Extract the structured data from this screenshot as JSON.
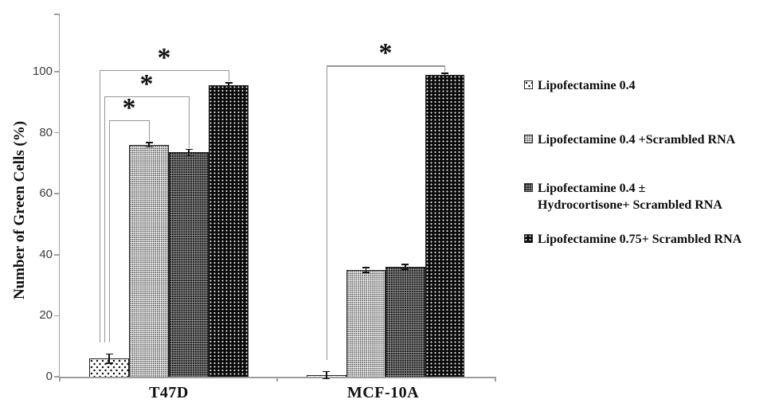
{
  "figure": {
    "background": "#ffffff"
  },
  "colors": {
    "axis": "#9e9e9e",
    "bracket": "#969696",
    "error_bar": "#111111",
    "text": "#111111"
  },
  "significance_marker": "*",
  "y_axis": {
    "label": "Number of Green Cells (%)"
  },
  "legend": {
    "items": [
      {
        "label": "Lipofectamine 0.4",
        "pattern": "white-with-black-dots"
      },
      {
        "label": "Lipofectamine 0.4 +Scrambled RNA",
        "pattern": "light-gray-fine-dots"
      },
      {
        "label": "Lipofectamine 0.4 ±\nHydrocortisone+ Scrambled RNA",
        "pattern": "dark-gray-fine-dots"
      },
      {
        "label": "Lipofectamine 0.75+ Scrambled RNA",
        "pattern": "black-with-white-dots"
      }
    ]
  },
  "chart_data": {
    "type": "bar",
    "title": "",
    "xlabel": "",
    "ylabel": "Number of Green Cells (%)",
    "categories": [
      "T47D",
      "MCF-10A"
    ],
    "series": [
      {
        "name": "Lipofectamine 0.4",
        "values": [
          6,
          0.5
        ],
        "errors": [
          1.5,
          1.2
        ],
        "pattern": "white-with-black-dots"
      },
      {
        "name": "Lipofectamine 0.4 +Scrambled RNA",
        "values": [
          76,
          35
        ],
        "errors": [
          0.7,
          0.8
        ],
        "pattern": "light-gray-fine-dots"
      },
      {
        "name": "Lipofectamine 0.4 ± Hydrocortisone+ Scrambled RNA",
        "values": [
          73.5,
          36
        ],
        "errors": [
          1.0,
          0.8
        ],
        "pattern": "dark-gray-fine-dots"
      },
      {
        "name": "Lipofectamine 0.75+ Scrambled RNA",
        "values": [
          95.5,
          99
        ],
        "errors": [
          0.8,
          0.5
        ],
        "pattern": "black-with-white-dots"
      }
    ],
    "yticks": [
      0,
      20,
      40,
      60,
      80,
      100
    ],
    "ylim": [
      0,
      119
    ],
    "grid": false,
    "legend_position": "right",
    "error_bars": true,
    "significance": [
      {
        "group": "T47D",
        "from": 0,
        "to": 1,
        "label": "*",
        "height_pct": 84
      },
      {
        "group": "T47D",
        "from": 0,
        "to": 2,
        "label": "*",
        "height_pct": 92
      },
      {
        "group": "T47D",
        "from": 0,
        "to": 3,
        "label": "*",
        "height_pct": 100.5
      },
      {
        "group": "MCF-10A",
        "from": 0,
        "to": 3,
        "label": "*",
        "height_pct": 102
      }
    ]
  }
}
